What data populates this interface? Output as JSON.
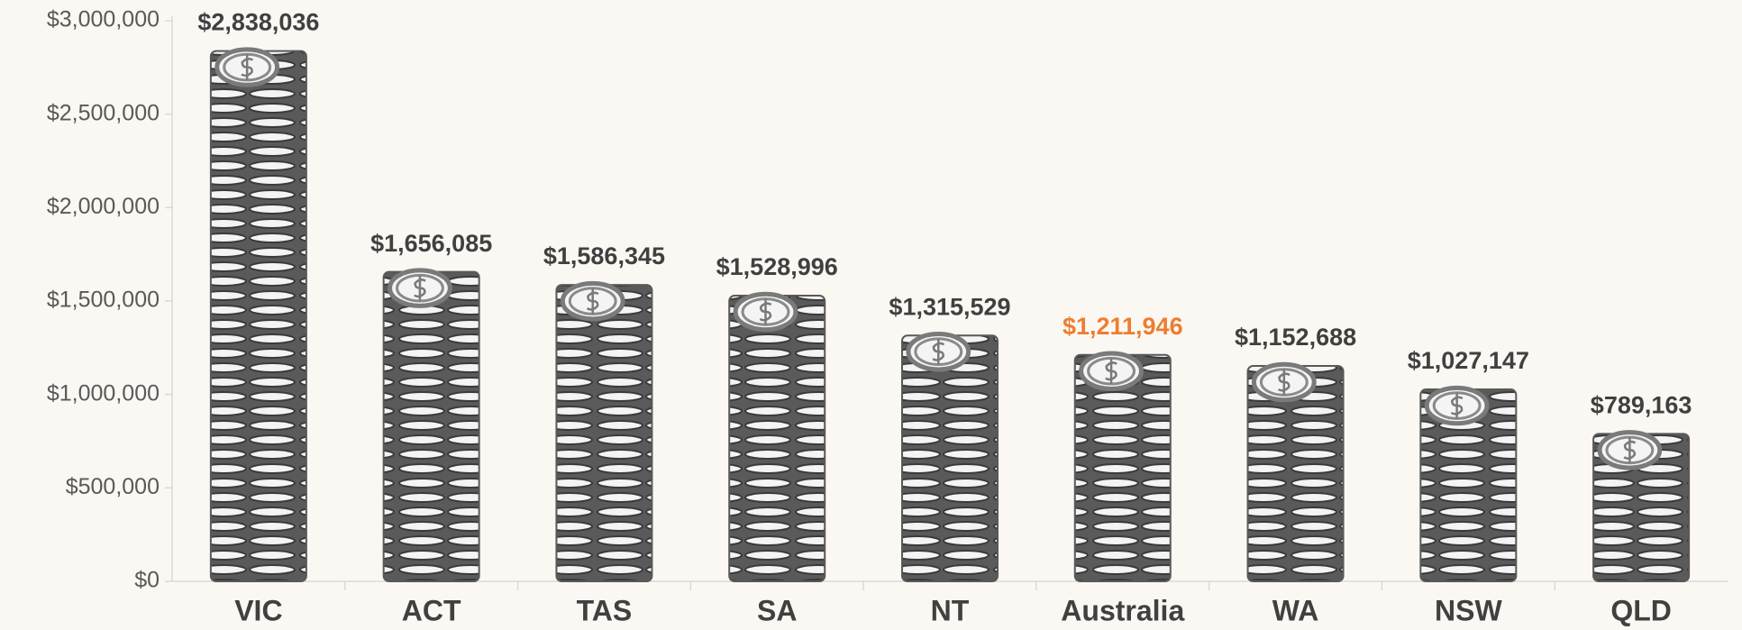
{
  "chart_data": {
    "type": "bar",
    "categories": [
      "VIC",
      "ACT",
      "TAS",
      "SA",
      "NT",
      "Australia",
      "WA",
      "NSW",
      "QLD"
    ],
    "values": [
      2838036,
      1656085,
      1586345,
      1528996,
      1315529,
      1211946,
      1152688,
      1027147,
      789163
    ],
    "value_labels": [
      "$2,838,036",
      "$1,656,085",
      "$1,586,345",
      "$1,528,996",
      "$1,315,529",
      "$1,211,946",
      "$1,152,688",
      "$1,027,147",
      "$789,163"
    ],
    "value_label_colors": [
      "#404040",
      "#404040",
      "#404040",
      "#404040",
      "#404040",
      "#ed7d31",
      "#404040",
      "#404040",
      "#404040"
    ],
    "color": "#595959",
    "ylim": [
      0,
      3000000
    ],
    "yticks": [
      {
        "value": 0,
        "label": "$0"
      },
      {
        "value": 500000,
        "label": "$500,000"
      },
      {
        "value": 1000000,
        "label": "$1,000,000"
      },
      {
        "value": 1500000,
        "label": "$1,500,000"
      },
      {
        "value": 2000000,
        "label": "$2,000,000"
      },
      {
        "value": 2500000,
        "label": "$2,500,000"
      },
      {
        "value": 3000000,
        "label": "$3,000,000"
      }
    ],
    "grid": false
  }
}
